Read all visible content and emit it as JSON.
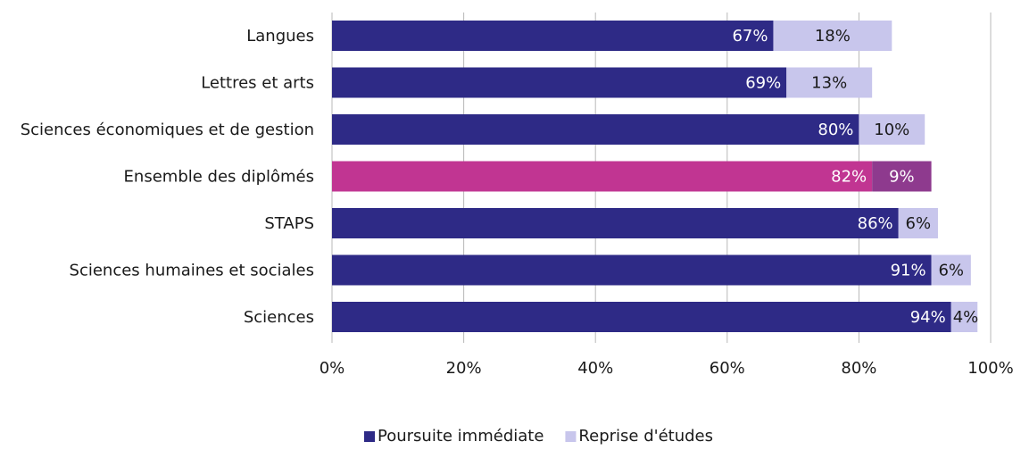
{
  "chart_data": {
    "type": "bar",
    "orientation": "horizontal",
    "stacked": true,
    "categories": [
      "Langues",
      "Lettres et arts",
      "Sciences économiques et de gestion",
      "Ensemble des diplômés",
      "STAPS",
      "Sciences humaines et sociales",
      "Sciences"
    ],
    "series": [
      {
        "name": "Poursuite immédiate",
        "values": [
          67,
          69,
          80,
          82,
          86,
          91,
          94
        ],
        "labels": [
          "67%",
          "69%",
          "80%",
          "82%",
          "86%",
          "91%",
          "94%"
        ],
        "color": "#2e2a86"
      },
      {
        "name": "Reprise d'études",
        "values": [
          18,
          13,
          10,
          9,
          6,
          6,
          4
        ],
        "labels": [
          "18%",
          "13%",
          "10%",
          "9%",
          "6%",
          "6%",
          "4%"
        ],
        "color": "#c8c6ec"
      }
    ],
    "highlight": {
      "category": "Ensemble des diplômés",
      "colors": [
        "#c13592",
        "#8e3a8e"
      ]
    },
    "xlim": [
      0,
      100
    ],
    "x_ticks": [
      "0%",
      "20%",
      "40%",
      "60%",
      "80%",
      "100%"
    ],
    "grid": "vertical",
    "legend_position": "bottom",
    "title": "",
    "xlabel": "",
    "ylabel": ""
  }
}
